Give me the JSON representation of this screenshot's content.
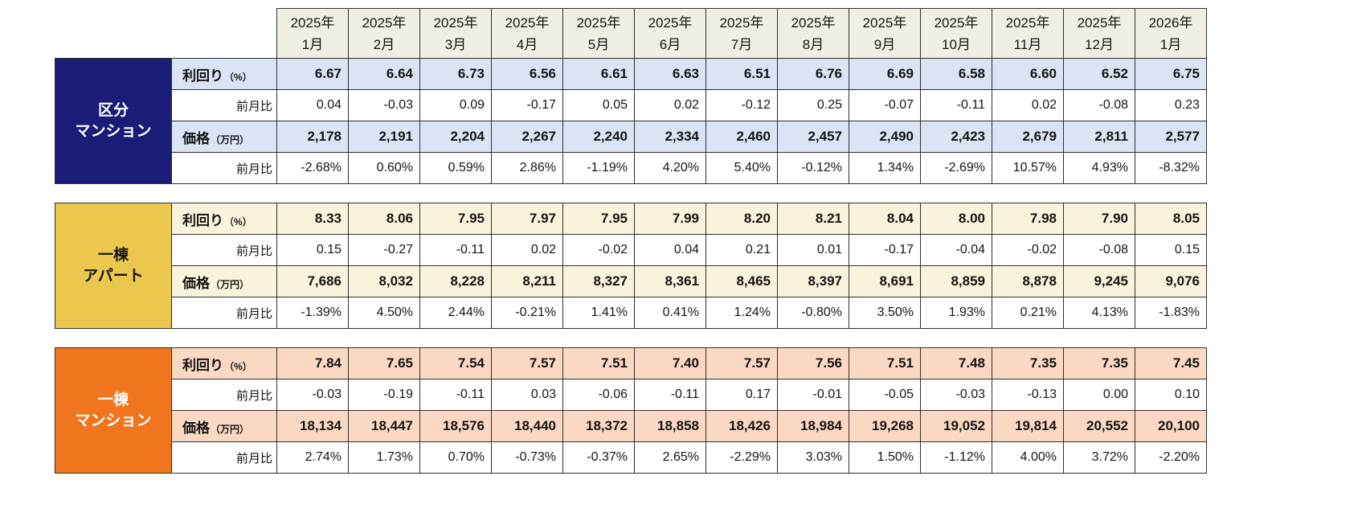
{
  "columns": [
    {
      "line1": "2025年",
      "line2": "1月"
    },
    {
      "line1": "2025年",
      "line2": "2月"
    },
    {
      "line1": "2025年",
      "line2": "3月"
    },
    {
      "line1": "2025年",
      "line2": "4月"
    },
    {
      "line1": "2025年",
      "line2": "5月"
    },
    {
      "line1": "2025年",
      "line2": "6月"
    },
    {
      "line1": "2025年",
      "line2": "7月"
    },
    {
      "line1": "2025年",
      "line2": "8月"
    },
    {
      "line1": "2025年",
      "line2": "9月"
    },
    {
      "line1": "2025年",
      "line2": "10月"
    },
    {
      "line1": "2025年",
      "line2": "11月"
    },
    {
      "line1": "2025年",
      "line2": "12月"
    },
    {
      "line1": "2026年",
      "line2": "1月"
    }
  ],
  "tables": [
    {
      "id": "kubun-mansion",
      "category_lines": [
        "区分",
        "マンション"
      ],
      "colors": {
        "header_bg": "#1b1b78",
        "header_fg": "#ffffff",
        "band_bg": "#dbe4f4"
      },
      "rows": [
        {
          "label": "利回り",
          "unit": "（%）",
          "band": true,
          "values": [
            "6.67",
            "6.64",
            "6.73",
            "6.56",
            "6.61",
            "6.63",
            "6.51",
            "6.76",
            "6.69",
            "6.58",
            "6.60",
            "6.52",
            "6.75"
          ]
        },
        {
          "label": "前月比",
          "unit": "",
          "band": false,
          "values": [
            "0.04",
            "-0.03",
            "0.09",
            "-0.17",
            "0.05",
            "0.02",
            "-0.12",
            "0.25",
            "-0.07",
            "-0.11",
            "0.02",
            "-0.08",
            "0.23"
          ]
        },
        {
          "label": "価格",
          "unit": "（万円）",
          "band": true,
          "values": [
            "2,178",
            "2,191",
            "2,204",
            "2,267",
            "2,240",
            "2,334",
            "2,460",
            "2,457",
            "2,490",
            "2,423",
            "2,679",
            "2,811",
            "2,577"
          ]
        },
        {
          "label": "前月比",
          "unit": "",
          "band": false,
          "values": [
            "-2.68%",
            "0.60%",
            "0.59%",
            "2.86%",
            "-1.19%",
            "4.20%",
            "5.40%",
            "-0.12%",
            "1.34%",
            "-2.69%",
            "10.57%",
            "4.93%",
            "-8.32%"
          ]
        }
      ]
    },
    {
      "id": "itto-apart",
      "category_lines": [
        "一棟",
        "アパート"
      ],
      "colors": {
        "header_bg": "#ecc74d",
        "header_fg": "#141414",
        "band_bg": "#faf3dc"
      },
      "rows": [
        {
          "label": "利回り",
          "unit": "（%）",
          "band": true,
          "values": [
            "8.33",
            "8.06",
            "7.95",
            "7.97",
            "7.95",
            "7.99",
            "8.20",
            "8.21",
            "8.04",
            "8.00",
            "7.98",
            "7.90",
            "8.05"
          ]
        },
        {
          "label": "前月比",
          "unit": "",
          "band": false,
          "values": [
            "0.15",
            "-0.27",
            "-0.11",
            "0.02",
            "-0.02",
            "0.04",
            "0.21",
            "0.01",
            "-0.17",
            "-0.04",
            "-0.02",
            "-0.08",
            "0.15"
          ]
        },
        {
          "label": "価格",
          "unit": "（万円）",
          "band": true,
          "values": [
            "7,686",
            "8,032",
            "8,228",
            "8,211",
            "8,327",
            "8,361",
            "8,465",
            "8,397",
            "8,691",
            "8,859",
            "8,878",
            "9,245",
            "9,076"
          ]
        },
        {
          "label": "前月比",
          "unit": "",
          "band": false,
          "values": [
            "-1.39%",
            "4.50%",
            "2.44%",
            "-0.21%",
            "1.41%",
            "0.41%",
            "1.24%",
            "-0.80%",
            "3.50%",
            "1.93%",
            "0.21%",
            "4.13%",
            "-1.83%"
          ]
        }
      ]
    },
    {
      "id": "itto-mansion",
      "category_lines": [
        "一棟",
        "マンション"
      ],
      "colors": {
        "header_bg": "#f1751e",
        "header_fg": "#ffffff",
        "band_bg": "#fbd8c2"
      },
      "rows": [
        {
          "label": "利回り",
          "unit": "（%）",
          "band": true,
          "values": [
            "7.84",
            "7.65",
            "7.54",
            "7.57",
            "7.51",
            "7.40",
            "7.57",
            "7.56",
            "7.51",
            "7.48",
            "7.35",
            "7.35",
            "7.45"
          ]
        },
        {
          "label": "前月比",
          "unit": "",
          "band": false,
          "values": [
            "-0.03",
            "-0.19",
            "-0.11",
            "0.03",
            "-0.06",
            "-0.11",
            "0.17",
            "-0.01",
            "-0.05",
            "-0.03",
            "-0.13",
            "0.00",
            "0.10"
          ]
        },
        {
          "label": "価格",
          "unit": "（万円）",
          "band": true,
          "values": [
            "18,134",
            "18,447",
            "18,576",
            "18,440",
            "18,372",
            "18,858",
            "18,426",
            "18,984",
            "19,268",
            "19,052",
            "19,814",
            "20,552",
            "20,100"
          ]
        },
        {
          "label": "前月比",
          "unit": "",
          "band": false,
          "values": [
            "2.74%",
            "1.73%",
            "0.70%",
            "-0.73%",
            "-0.37%",
            "2.65%",
            "-2.29%",
            "3.03%",
            "1.50%",
            "-1.12%",
            "4.00%",
            "3.72%",
            "-2.20%"
          ]
        }
      ]
    }
  ],
  "chart_data": {
    "type": "table",
    "columns": [
      "2025年1月",
      "2025年2月",
      "2025年3月",
      "2025年4月",
      "2025年5月",
      "2025年6月",
      "2025年7月",
      "2025年8月",
      "2025年9月",
      "2025年10月",
      "2025年11月",
      "2025年12月",
      "2026年1月"
    ],
    "row_labels": [
      "利回り（%）",
      "前月比",
      "価格（万円）",
      "前月比"
    ],
    "sections": [
      {
        "name": "区分マンション",
        "yield_pct": [
          6.67,
          6.64,
          6.73,
          6.56,
          6.61,
          6.63,
          6.51,
          6.76,
          6.69,
          6.58,
          6.6,
          6.52,
          6.75
        ],
        "yield_mom": [
          0.04,
          -0.03,
          0.09,
          -0.17,
          0.05,
          0.02,
          -0.12,
          0.25,
          -0.07,
          -0.11,
          0.02,
          -0.08,
          0.23
        ],
        "price_man_yen": [
          2178,
          2191,
          2204,
          2267,
          2240,
          2334,
          2460,
          2457,
          2490,
          2423,
          2679,
          2811,
          2577
        ],
        "price_mom_pct": [
          -2.68,
          0.6,
          0.59,
          2.86,
          -1.19,
          4.2,
          5.4,
          -0.12,
          1.34,
          -2.69,
          10.57,
          4.93,
          -8.32
        ]
      },
      {
        "name": "一棟アパート",
        "yield_pct": [
          8.33,
          8.06,
          7.95,
          7.97,
          7.95,
          7.99,
          8.2,
          8.21,
          8.04,
          8.0,
          7.98,
          7.9,
          8.05
        ],
        "yield_mom": [
          0.15,
          -0.27,
          -0.11,
          0.02,
          -0.02,
          0.04,
          0.21,
          0.01,
          -0.17,
          -0.04,
          -0.02,
          -0.08,
          0.15
        ],
        "price_man_yen": [
          7686,
          8032,
          8228,
          8211,
          8327,
          8361,
          8465,
          8397,
          8691,
          8859,
          8878,
          9245,
          9076
        ],
        "price_mom_pct": [
          -1.39,
          4.5,
          2.44,
          -0.21,
          1.41,
          0.41,
          1.24,
          -0.8,
          3.5,
          1.93,
          0.21,
          4.13,
          -1.83
        ]
      },
      {
        "name": "一棟マンション",
        "yield_pct": [
          7.84,
          7.65,
          7.54,
          7.57,
          7.51,
          7.4,
          7.57,
          7.56,
          7.51,
          7.48,
          7.35,
          7.35,
          7.45
        ],
        "yield_mom": [
          -0.03,
          -0.19,
          -0.11,
          0.03,
          -0.06,
          -0.11,
          0.17,
          -0.01,
          -0.05,
          -0.03,
          -0.13,
          0.0,
          0.1
        ],
        "price_man_yen": [
          18134,
          18447,
          18576,
          18440,
          18372,
          18858,
          18426,
          18984,
          19268,
          19052,
          19814,
          20552,
          20100
        ],
        "price_mom_pct": [
          2.74,
          1.73,
          0.7,
          -0.73,
          -0.37,
          2.65,
          -2.29,
          3.03,
          1.5,
          -1.12,
          4.0,
          3.72,
          -2.2
        ]
      }
    ]
  }
}
